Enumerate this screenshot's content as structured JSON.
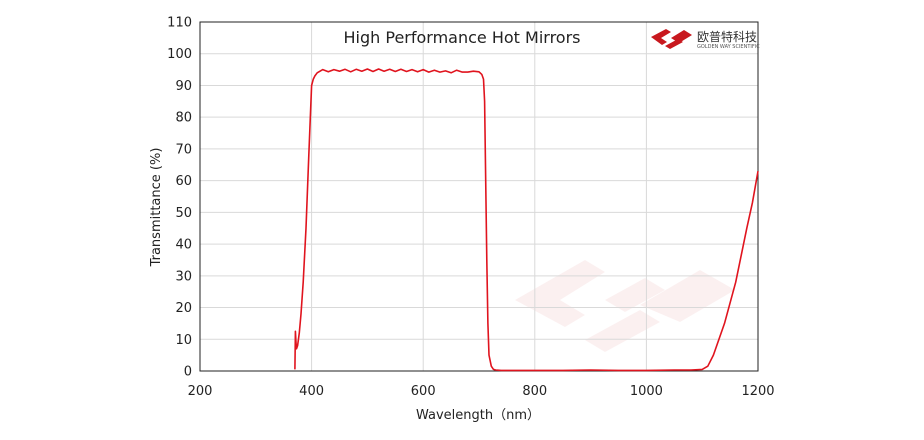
{
  "chart_data": {
    "type": "line",
    "title": "High Performance Hot Mirrors",
    "xlabel": "Wavelength（nm）",
    "ylabel": "Transmittance (%)",
    "xlim": [
      200,
      1200
    ],
    "ylim": [
      0,
      110
    ],
    "xticks": [
      200,
      400,
      600,
      800,
      1000,
      1200
    ],
    "yticks": [
      0,
      10,
      20,
      30,
      40,
      50,
      60,
      70,
      80,
      90,
      100,
      110
    ],
    "grid": true,
    "series": [
      {
        "color": "#e0141e",
        "x": [
          370,
          371,
          372,
          373,
          375,
          378,
          381,
          385,
          390,
          395,
          400,
          403,
          406,
          410,
          420,
          430,
          440,
          450,
          460,
          470,
          480,
          490,
          500,
          510,
          520,
          530,
          540,
          550,
          560,
          570,
          580,
          590,
          600,
          610,
          620,
          630,
          640,
          650,
          660,
          670,
          680,
          690,
          700,
          705,
          708,
          710,
          712,
          714,
          716,
          718,
          722,
          726,
          730,
          740,
          750,
          800,
          850,
          900,
          950,
          1000,
          1050,
          1080,
          1100,
          1110,
          1120,
          1140,
          1160,
          1180,
          1190,
          1195,
          1200
        ],
        "y": [
          0.5,
          12.5,
          9,
          7,
          8,
          12,
          18,
          28,
          45,
          68,
          90,
          92,
          93,
          94,
          95,
          94.3,
          95,
          94.5,
          95.1,
          94.3,
          95.1,
          94.5,
          95.2,
          94.4,
          95.2,
          94.5,
          95.1,
          94.4,
          95.1,
          94.4,
          95,
          94.3,
          95,
          94.2,
          94.8,
          94.2,
          94.6,
          94,
          94.8,
          94.2,
          94.2,
          94.5,
          94.3,
          93.5,
          92,
          85,
          60,
          35,
          15,
          5,
          1.5,
          0.5,
          0.3,
          0.2,
          0.2,
          0.2,
          0.2,
          0.3,
          0.2,
          0.2,
          0.3,
          0.3,
          0.5,
          1.5,
          5,
          15,
          28,
          45,
          53,
          58,
          63
        ]
      }
    ]
  },
  "logo": {
    "name_cn": "欧普特科技",
    "name_en": "GOLDEN WAY SCIENTIFIC",
    "color": "#c8181e"
  }
}
